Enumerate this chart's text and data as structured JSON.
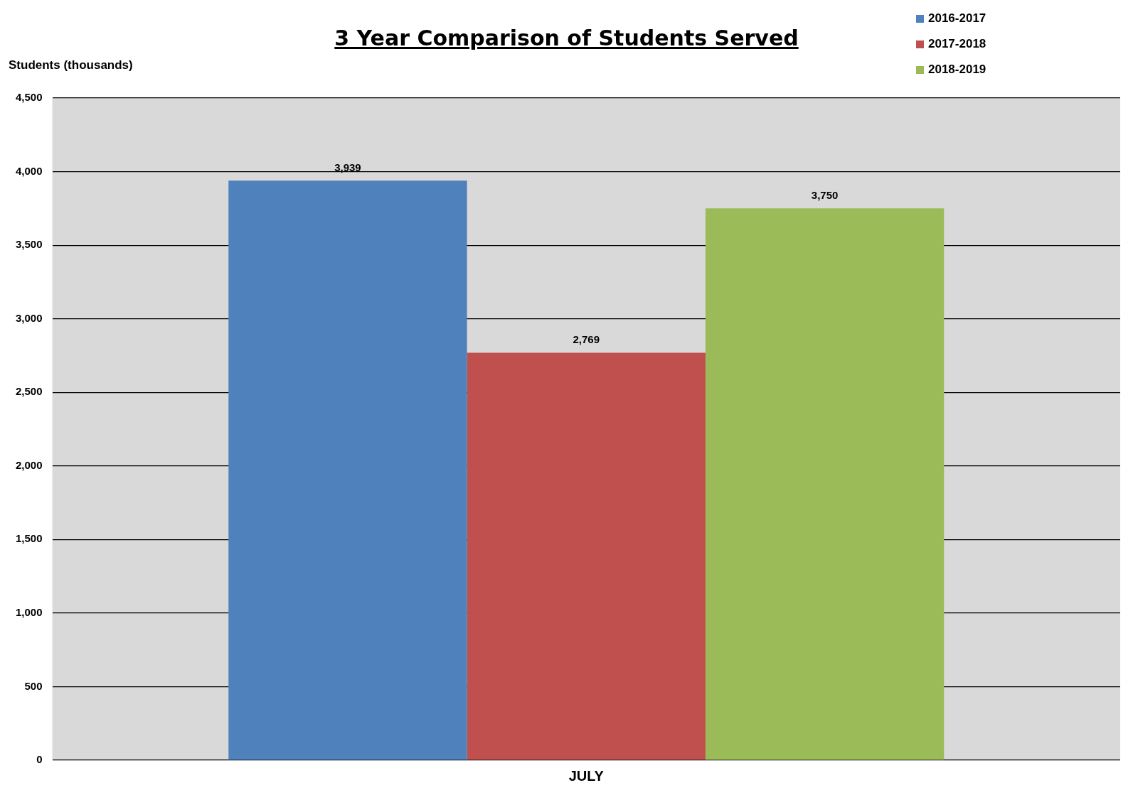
{
  "chart_data": {
    "type": "bar",
    "title": "3 Year Comparison of Students Served",
    "ylabel": "Students (thousands)",
    "categories": [
      "JULY"
    ],
    "series": [
      {
        "name": "2016-2017",
        "color": "#4f81bd",
        "values": [
          3939
        ],
        "value_labels": [
          "3,939"
        ]
      },
      {
        "name": "2017-2018",
        "color": "#c0504d",
        "values": [
          2769
        ],
        "value_labels": [
          "2,769"
        ]
      },
      {
        "name": "2018-2019",
        "color": "#9bbb59",
        "values": [
          3750
        ],
        "value_labels": [
          "3,750"
        ]
      }
    ],
    "ylim": [
      0,
      4500
    ],
    "yticks": [
      0,
      500,
      {
        "value": 1000,
        "label": "1,000"
      },
      {
        "value": 1500,
        "label": "1,500"
      },
      {
        "value": 2000,
        "label": "2,000"
      },
      {
        "value": 2500,
        "label": "2,500"
      },
      {
        "value": 3000,
        "label": "3,000"
      },
      {
        "value": 3500,
        "label": "3,500"
      },
      {
        "value": 4000,
        "label": "4,000"
      },
      {
        "value": 4500,
        "label": "4,500"
      }
    ],
    "grid": "y",
    "legend": "top right"
  }
}
